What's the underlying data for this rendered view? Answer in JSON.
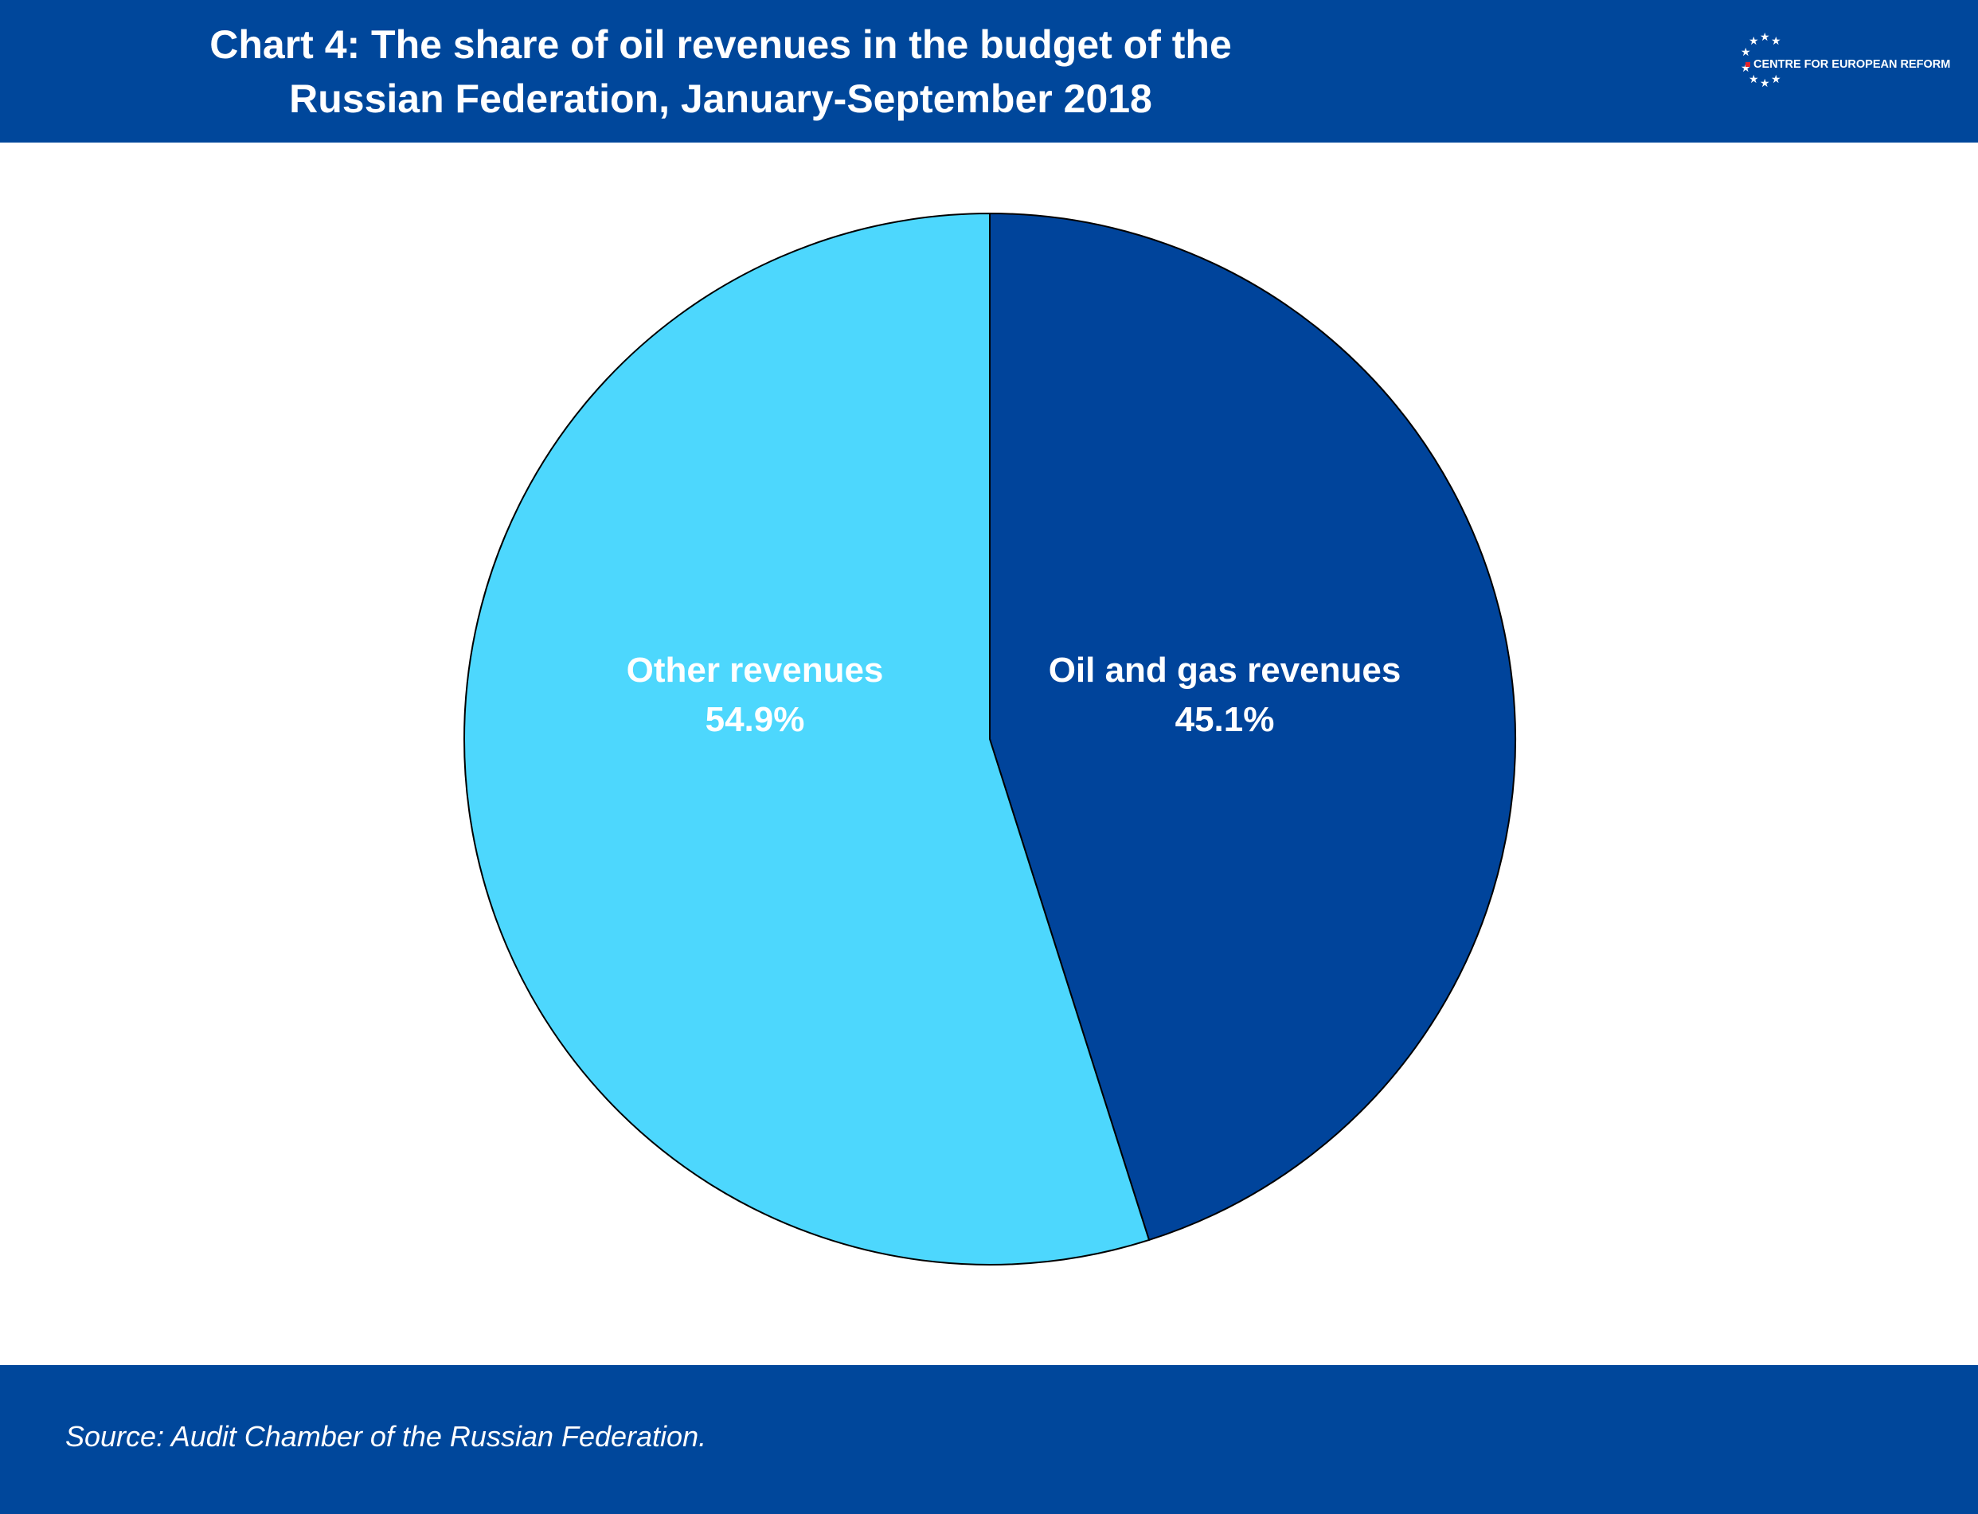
{
  "header": {
    "title_line1": "Chart 4: The share of oil revenues in the budget of the",
    "title_line2": "Russian Federation, January-September 2018",
    "logo_text": "CENTRE FOR EUROPEAN REFORM"
  },
  "footer": {
    "source": "Source: Audit Chamber of the Russian Federation."
  },
  "colors": {
    "brand_blue": "#00479b",
    "oil_gas": "#00449b",
    "other": "#4dd7fd"
  },
  "chart_data": {
    "type": "pie",
    "title": "Chart 4: The share of oil revenues in the budget of the Russian Federation, January-September 2018",
    "start_angle": "12 o'clock",
    "direction": "clockwise",
    "slices": [
      {
        "label": "Oil and gas revenues",
        "value": 45.1,
        "display": "45.1%",
        "color": "#00449b"
      },
      {
        "label": "Other revenues",
        "value": 54.9,
        "display": "54.9%",
        "color": "#4dd7fd"
      }
    ]
  }
}
